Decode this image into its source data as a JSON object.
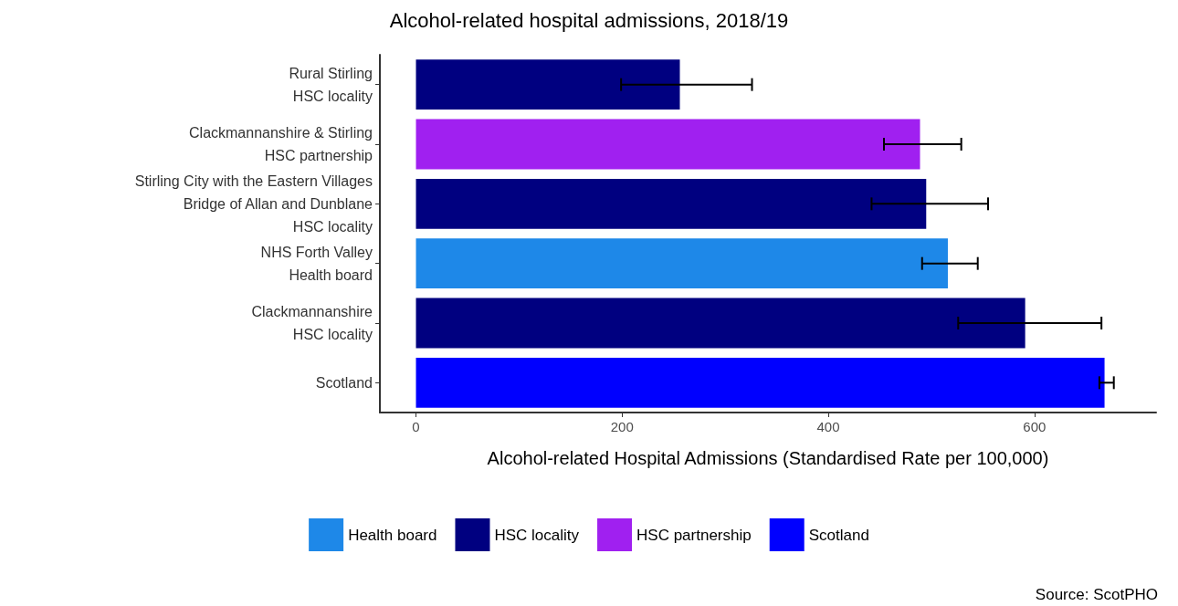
{
  "chart_data": {
    "type": "bar",
    "orientation": "horizontal",
    "title": "Alcohol-related hospital admissions, 2018/19",
    "xlabel": "Alcohol-related Hospital Admissions (Standardised Rate per 100,000)",
    "categories": [
      "Rural Stirling\nHSC locality",
      "Clackmannanshire & Stirling\nHSC partnership",
      "Stirling City with the Eastern Villages\nBridge of Allan and Dunblane\nHSC locality",
      "NHS Forth Valley\nHealth board",
      "Clackmannanshire\nHSC locality",
      "Scotland"
    ],
    "series": [
      {
        "name": "Health board",
        "color": "#1e88e8",
        "values": [
          null,
          null,
          null,
          516,
          null,
          null
        ],
        "errors": [
          null,
          null,
          null,
          [
            491,
            545
          ],
          null,
          null
        ]
      },
      {
        "name": "HSC locality",
        "color": "#000080",
        "values": [
          256,
          null,
          495,
          null,
          591,
          null
        ],
        "errors": [
          [
            199,
            326
          ],
          null,
          [
            442,
            555
          ],
          null,
          [
            526,
            665
          ],
          null
        ]
      },
      {
        "name": "HSC partnership",
        "color": "#a020f0",
        "values": [
          null,
          489,
          null,
          null,
          null,
          null
        ],
        "errors": [
          null,
          [
            454,
            529
          ],
          null,
          null,
          null,
          null
        ]
      },
      {
        "name": "Scotland",
        "color": "#0000ff",
        "values": [
          null,
          null,
          null,
          null,
          null,
          668
        ],
        "errors": [
          null,
          null,
          null,
          null,
          null,
          [
            663,
            677
          ]
        ]
      }
    ],
    "xlim": [
      -35,
      718
    ],
    "xticks": [
      0,
      200,
      400,
      600
    ],
    "grid": false,
    "legend": "bottom",
    "annotations": [
      "Source: ScotPHO"
    ]
  }
}
